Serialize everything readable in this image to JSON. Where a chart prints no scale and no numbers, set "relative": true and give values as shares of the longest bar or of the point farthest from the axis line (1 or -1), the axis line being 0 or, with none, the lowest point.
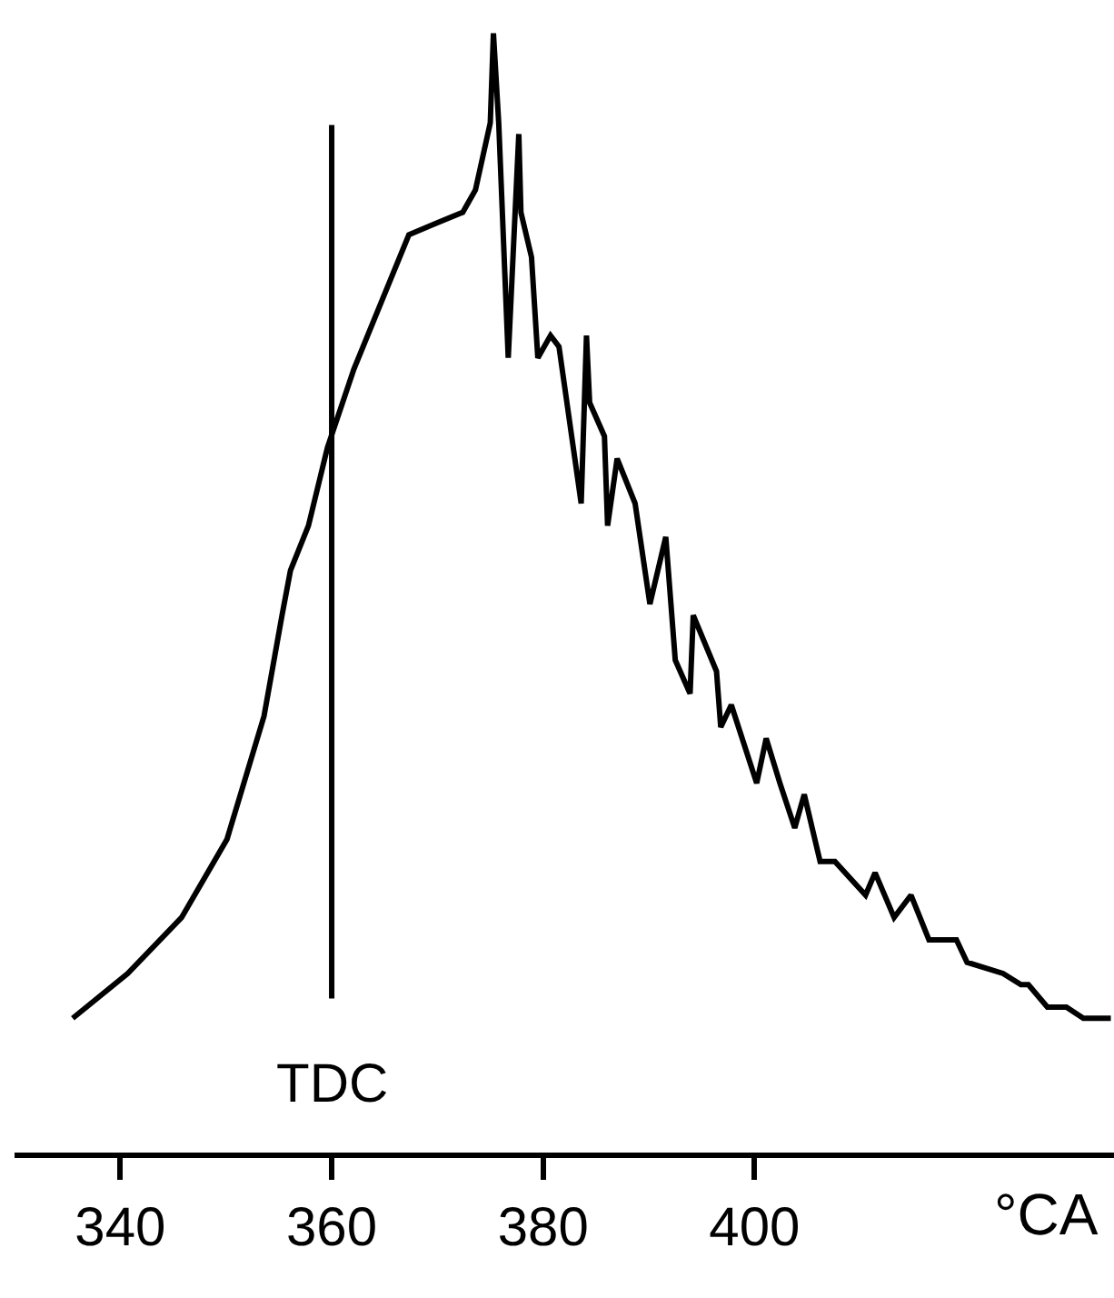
{
  "chart_data": {
    "type": "line",
    "relative": true,
    "xlabel": "°CA",
    "xlim": [
      330,
      434
    ],
    "xticks": [
      340,
      360,
      380,
      400
    ],
    "grid": false,
    "marker": "none",
    "line_style": "solid",
    "tick_labels": "x",
    "x": [
      335.5,
      340.7,
      345.8,
      350.1,
      353.6,
      355.3,
      356.1,
      357.8,
      359.6,
      362.1,
      364.7,
      367.3,
      369.8,
      372.4,
      373.6,
      375.0,
      375.3,
      375.8,
      376.7,
      377.7,
      377.9,
      378.9,
      379.5,
      380.7,
      381.5,
      383.6,
      384.1,
      384.4,
      385.8,
      386.1,
      387.0,
      388.7,
      390.1,
      391.6,
      392.5,
      393.9,
      394.2,
      396.4,
      396.8,
      397.8,
      400.2,
      401.1,
      402.4,
      403.8,
      404.7,
      406.2,
      407.6,
      410.5,
      411.4,
      413.2,
      414.8,
      416.5,
      419.1,
      420.1,
      423.5,
      425.2,
      425.9,
      427.7,
      429.5,
      431.1,
      432.5,
      433.7
    ],
    "series": [
      {
        "color": "#000000",
        "values": [
          0.12,
          0.16,
          0.21,
          0.28,
          0.39,
          0.48,
          0.52,
          0.56,
          0.63,
          0.7,
          0.76,
          0.82,
          0.83,
          0.84,
          0.86,
          0.92,
          1.0,
          0.92,
          0.71,
          0.91,
          0.84,
          0.8,
          0.71,
          0.73,
          0.72,
          0.58,
          0.73,
          0.67,
          0.64,
          0.56,
          0.62,
          0.58,
          0.49,
          0.55,
          0.44,
          0.41,
          0.48,
          0.43,
          0.38,
          0.4,
          0.33,
          0.37,
          0.33,
          0.29,
          0.32,
          0.26,
          0.26,
          0.23,
          0.25,
          0.21,
          0.23,
          0.19,
          0.19,
          0.17,
          0.16,
          0.15,
          0.15,
          0.13,
          0.13,
          0.12,
          0.12,
          0.12
        ]
      }
    ],
    "ref_lines": [
      {
        "axis": "x",
        "value": 360,
        "label": "TDC",
        "color": "#000000"
      }
    ]
  }
}
